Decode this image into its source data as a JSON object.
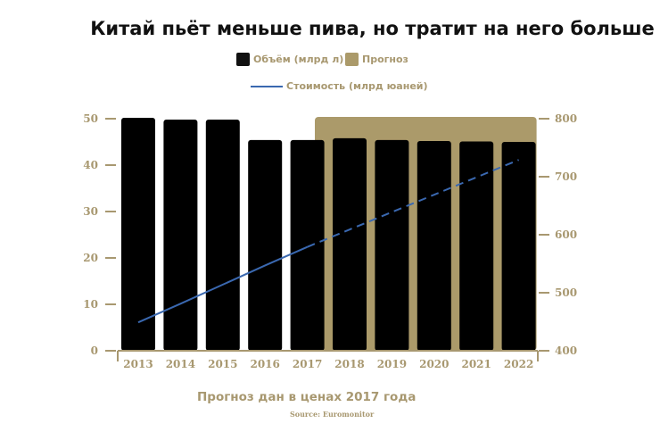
{
  "chart_data": {
    "type": "bar",
    "title": "Китай пьёт меньше пива, но тратит на него больше",
    "categories": [
      "2013",
      "2014",
      "2015",
      "2016",
      "2017",
      "2018",
      "2019",
      "2020",
      "2021",
      "2022"
    ],
    "series": [
      {
        "name": "Объём (млрд л)",
        "type": "bar",
        "axis": "left",
        "values": [
          50.2,
          49.8,
          49.8,
          45.4,
          45.4,
          45.8,
          45.4,
          45.2,
          45.1,
          45.0
        ]
      },
      {
        "name": "Стоимость (млрд юаней)",
        "type": "line",
        "axis": "right",
        "values": [
          449,
          481,
          514,
          547,
          579,
          609,
          639,
          669,
          699,
          729
        ]
      }
    ],
    "forecast": {
      "label": "Прогноз",
      "from": "2018",
      "to": "2022"
    },
    "left_axis": {
      "ylim": [
        0,
        50
      ],
      "ticks": [
        "0",
        "10",
        "20",
        "30",
        "40",
        "50"
      ]
    },
    "right_axis": {
      "ylim": [
        400,
        800
      ],
      "ticks": [
        "400",
        "500",
        "600",
        "700",
        "800"
      ]
    },
    "note": "Прогноз дан в ценах 2017 года",
    "source": "Source: Euromonitor",
    "colors": {
      "bar": "#000000",
      "forecast": "#ab9a6a",
      "line": "#3a68b0",
      "axis": "#a89870"
    }
  }
}
